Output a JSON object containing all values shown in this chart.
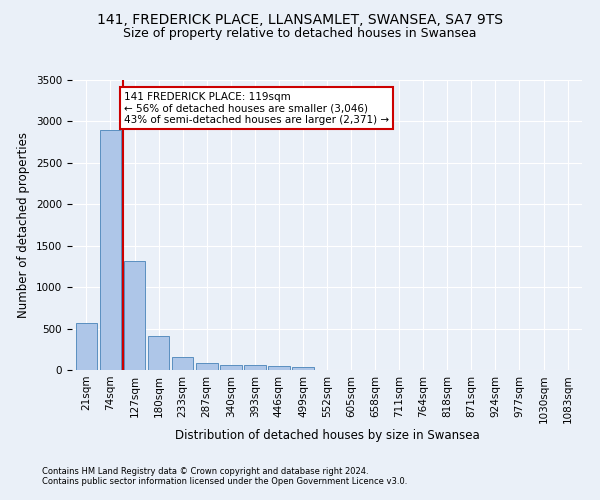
{
  "title1": "141, FREDERICK PLACE, LLANSAMLET, SWANSEA, SA7 9TS",
  "title2": "Size of property relative to detached houses in Swansea",
  "xlabel": "Distribution of detached houses by size in Swansea",
  "ylabel": "Number of detached properties",
  "footer1": "Contains HM Land Registry data © Crown copyright and database right 2024.",
  "footer2": "Contains public sector information licensed under the Open Government Licence v3.0.",
  "bin_labels": [
    "21sqm",
    "74sqm",
    "127sqm",
    "180sqm",
    "233sqm",
    "287sqm",
    "340sqm",
    "393sqm",
    "446sqm",
    "499sqm",
    "552sqm",
    "605sqm",
    "658sqm",
    "711sqm",
    "764sqm",
    "818sqm",
    "871sqm",
    "924sqm",
    "977sqm",
    "1030sqm",
    "1083sqm"
  ],
  "bar_heights": [
    570,
    2900,
    1320,
    410,
    155,
    90,
    60,
    55,
    45,
    40,
    0,
    0,
    0,
    0,
    0,
    0,
    0,
    0,
    0,
    0,
    0
  ],
  "bar_color": "#aec6e8",
  "bar_edge_color": "#5a8fc0",
  "vline_x": 1.5,
  "vline_color": "#cc0000",
  "annotation_line1": "141 FREDERICK PLACE: 119sqm",
  "annotation_line2": "← 56% of detached houses are smaller (3,046)",
  "annotation_line3": "43% of semi-detached houses are larger (2,371) →",
  "annotation_box_color": "#ffffff",
  "annotation_box_edge": "#cc0000",
  "ylim": [
    0,
    3500
  ],
  "yticks": [
    0,
    500,
    1000,
    1500,
    2000,
    2500,
    3000,
    3500
  ],
  "bg_color": "#eaf0f8",
  "plot_bg_color": "#eaf0f8",
  "grid_color": "#ffffff",
  "title1_fontsize": 10,
  "title2_fontsize": 9,
  "xlabel_fontsize": 8.5,
  "ylabel_fontsize": 8.5,
  "tick_fontsize": 7.5,
  "footer_fontsize": 6.0,
  "annot_fontsize": 7.5
}
